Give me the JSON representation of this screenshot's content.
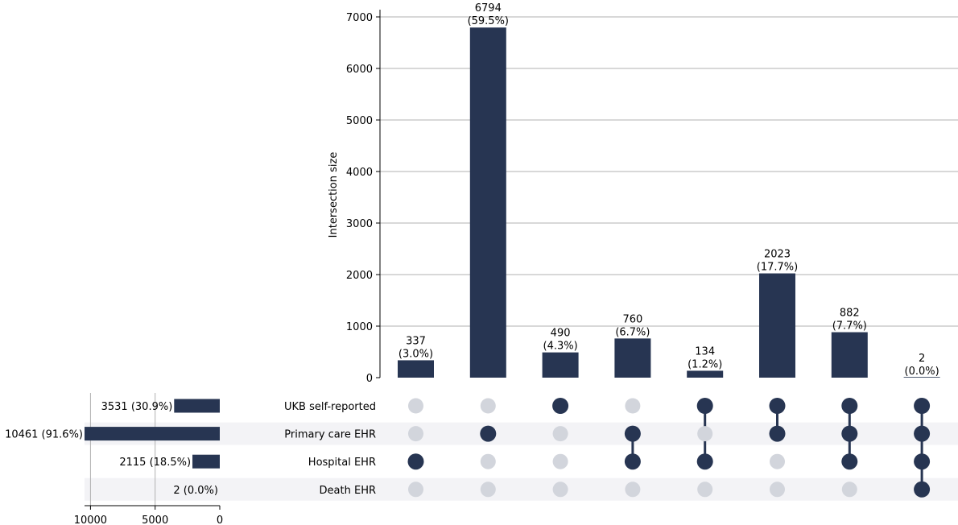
{
  "chart_data": {
    "type": "upset",
    "ylabel": "Intersection size",
    "ylim": [
      0,
      7000
    ],
    "yticks": [
      0,
      1000,
      2000,
      3000,
      4000,
      5000,
      6000,
      7000
    ],
    "sets": [
      {
        "name": "UKB self-reported",
        "size": 3531,
        "label": "3531 (30.9%)"
      },
      {
        "name": "Primary care EHR",
        "size": 10461,
        "label": "10461 (91.6%)"
      },
      {
        "name": "Hospital EHR",
        "size": 2115,
        "label": "2115 (18.5%)"
      },
      {
        "name": "Death EHR",
        "size": 2,
        "label": "2 (0.0%)"
      }
    ],
    "set_size_xticks": [
      10000,
      5000,
      0
    ],
    "set_size_xlim": [
      0,
      10461
    ],
    "intersections": [
      {
        "value": 337,
        "count_label": "337",
        "pct_label": "(3.0%)",
        "members": [
          2
        ]
      },
      {
        "value": 6794,
        "count_label": "6794",
        "pct_label": "(59.5%)",
        "members": [
          1
        ]
      },
      {
        "value": 490,
        "count_label": "490",
        "pct_label": "(4.3%)",
        "members": [
          0
        ]
      },
      {
        "value": 760,
        "count_label": "760",
        "pct_label": "(6.7%)",
        "members": [
          1,
          2
        ]
      },
      {
        "value": 134,
        "count_label": "134",
        "pct_label": "(1.2%)",
        "members": [
          0,
          2
        ]
      },
      {
        "value": 2023,
        "count_label": "2023",
        "pct_label": "(17.7%)",
        "members": [
          0,
          1
        ]
      },
      {
        "value": 882,
        "count_label": "882",
        "pct_label": "(7.7%)",
        "members": [
          0,
          1,
          2
        ]
      },
      {
        "value": 2,
        "count_label": "2",
        "pct_label": "(0.0%)",
        "members": [
          0,
          1,
          2,
          3
        ]
      }
    ],
    "grid": true,
    "colors": {
      "bar": "#273552",
      "inactive_dot": "#d2d5dc",
      "stripe": "#f3f3f6",
      "grid": "#b0b0b0"
    }
  }
}
